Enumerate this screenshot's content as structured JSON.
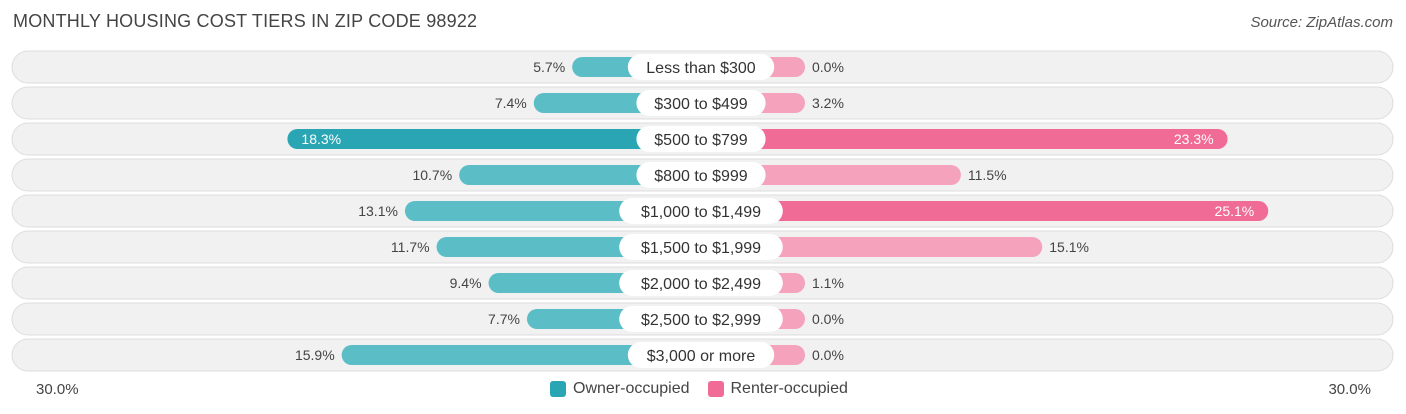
{
  "title": "MONTHLY HOUSING COST TIERS IN ZIP CODE 98922",
  "source": "Source: ZipAtlas.com",
  "colors": {
    "owner": "#5bbdc6",
    "owner_strong": "#2aa5b3",
    "renter": "#f5a3bc",
    "renter_strong": "#f06b96",
    "row_bg": "#f1f1f1",
    "row_border": "#dddddd"
  },
  "chart_data": {
    "type": "bar",
    "orientation": "horizontal-diverging",
    "title": "MONTHLY HOUSING COST TIERS IN ZIP CODE 98922",
    "categories": [
      "Less than $300",
      "$300 to $499",
      "$500 to $799",
      "$800 to $999",
      "$1,000 to $1,499",
      "$1,500 to $1,999",
      "$2,000 to $2,499",
      "$2,500 to $2,999",
      "$3,000 or more"
    ],
    "series": [
      {
        "name": "Owner-occupied",
        "values": [
          5.7,
          7.4,
          18.3,
          10.7,
          13.1,
          11.7,
          9.4,
          7.7,
          15.9
        ]
      },
      {
        "name": "Renter-occupied",
        "values": [
          0.0,
          3.2,
          23.3,
          11.5,
          25.1,
          15.1,
          1.1,
          0.0,
          0.0
        ]
      }
    ],
    "value_labels": {
      "owner": [
        "5.7%",
        "7.4%",
        "18.3%",
        "10.7%",
        "13.1%",
        "11.7%",
        "9.4%",
        "7.7%",
        "15.9%"
      ],
      "renter": [
        "0.0%",
        "3.2%",
        "23.3%",
        "11.5%",
        "25.1%",
        "15.1%",
        "1.1%",
        "0.0%",
        "0.0%"
      ]
    },
    "xlim": [
      -30,
      30
    ],
    "axis_left_label": "30.0%",
    "axis_right_label": "30.0%",
    "legend": [
      "Owner-occupied",
      "Renter-occupied"
    ],
    "legend_position": "bottom-center"
  }
}
